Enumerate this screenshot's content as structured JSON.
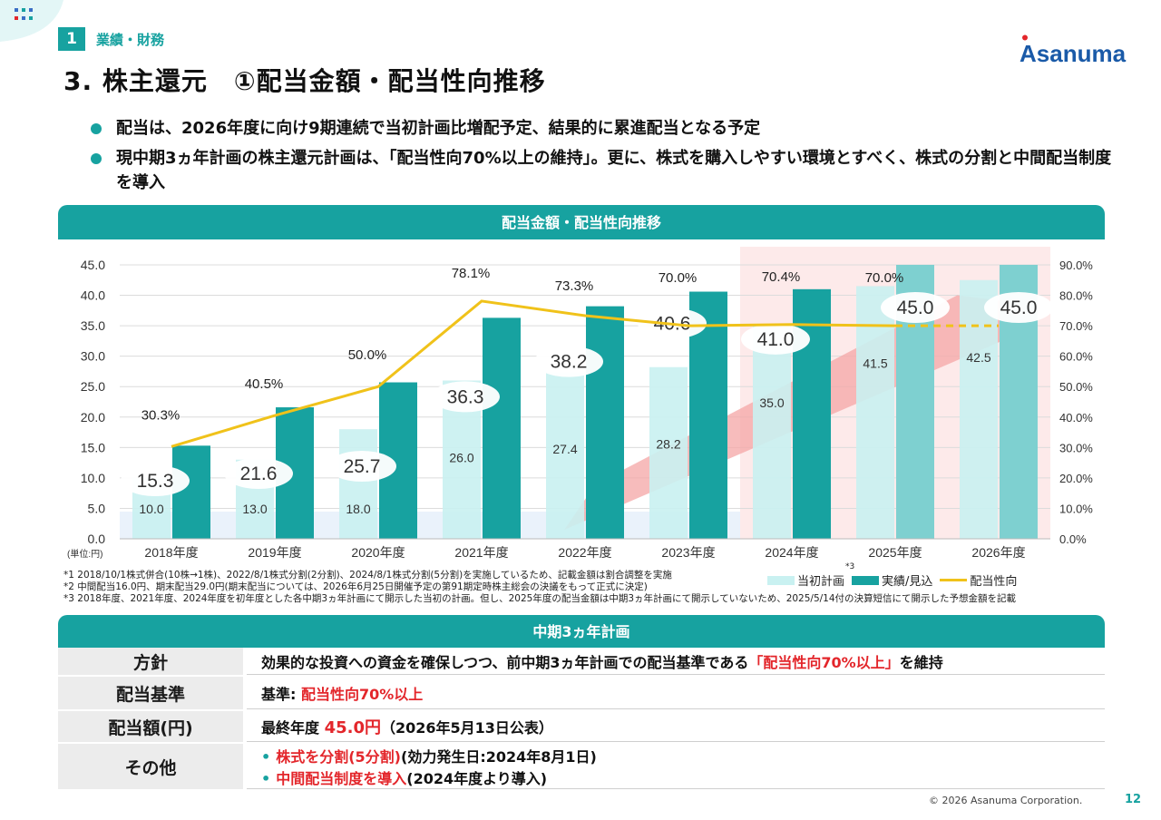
{
  "section": {
    "number": "1",
    "label": "業績・財務"
  },
  "title": "3. 株主還元　①配当金額・配当性向推移",
  "logo_text": "Asanuma",
  "bullets": [
    "配当は、2026年度に向け9期連続で当初計画比増配予定、結果的に累進配当となる予定",
    "現中期3ヵ年計画の株主還元計画は、「配当性向70%以上の維持」。更に、株式を購入しやすい環境とすべく、株式の分割と中間配当制度を導入"
  ],
  "chart_header": "配当金額・配当性向推移",
  "chart_data": {
    "type": "bar",
    "unit_label": "(単位:円)",
    "categories": [
      "2018年度",
      "2019年度",
      "2020年度",
      "2021年度",
      "2022年度",
      "2023年度",
      "2024年度",
      "2025年度",
      "2026年度"
    ],
    "series": [
      {
        "name": "当初計画",
        "type": "bar",
        "values": [
          10.0,
          13.0,
          18.0,
          26.0,
          27.4,
          28.2,
          35.0,
          41.5,
          42.5
        ],
        "labels": [
          "10.0",
          "13.0",
          "18.0",
          "26.0",
          "27.4",
          "28.2",
          "35.0",
          "41.5",
          "42.5"
        ]
      },
      {
        "name": "実績/見込",
        "type": "bar",
        "values": [
          15.3,
          21.6,
          25.7,
          36.3,
          38.2,
          40.6,
          41.0,
          45.0,
          45.0
        ],
        "labels": [
          "15.3",
          "21.6",
          "25.7",
          "36.3",
          "38.2",
          "40.6",
          "41.0",
          "45.0",
          "45.0"
        ]
      },
      {
        "name": "配当性向",
        "type": "line",
        "axis": "right",
        "values": [
          30.3,
          40.5,
          50.0,
          78.1,
          73.3,
          70.0,
          70.4,
          70.0,
          70.0
        ],
        "labels": [
          "30.3%",
          "40.5%",
          "50.0%",
          "78.1%",
          "73.3%",
          "70.0%",
          "70.4%",
          "70.0%",
          ""
        ],
        "dashed_from_index": 7
      }
    ],
    "y_left": {
      "min": 0,
      "max": 45,
      "ticks": [
        "0.0",
        "5.0",
        "10.0",
        "15.0",
        "20.0",
        "25.0",
        "30.0",
        "35.0",
        "40.0",
        "45.0"
      ]
    },
    "y_right": {
      "min": 0,
      "max": 90,
      "ticks": [
        "0.0%",
        "10.0%",
        "20.0%",
        "30.0%",
        "40.0%",
        "50.0%",
        "60.0%",
        "70.0%",
        "80.0%",
        "90.0%"
      ]
    },
    "grid": true,
    "legend_position": "bottom-right",
    "legend_superscript": "*3",
    "colors": {
      "plan": "#c9f1f1",
      "plan_highlight": "#c9f1f1",
      "actual": "#17a2a0",
      "actual_forecast": "#7ed0d0",
      "payout": "#f0c21a",
      "grid": "#dcdcdc",
      "arrow": "#f4a6a6",
      "highlight_bg": "#fdeaea"
    }
  },
  "footnotes": [
    "*1 2018/10/1株式併合(10株→1株)、2022/8/1株式分割(2分割)、2024/8/1株式分割(5分割)を実施しているため、記載金額は割合調整を実施",
    "*2 中間配当16.0円、期末配当29.0円(期末配当については、2026年6月25日開催予定の第91期定時株主総会の決議をもって正式に決定)",
    "*3 2018年度、2021年度、2024年度を初年度とした各中期3ヵ年計画にて開示した当初の計画。但し、2025年度の配当金額は中期3ヵ年計画にて開示していないため、2025/5/14付の決算短信にて開示した予想金額を記載"
  ],
  "plan": {
    "header": "中期3ヵ年計画",
    "policy_key": "方針",
    "policy_text_1": "効果的な投資への資金を確保しつつ、前中期3ヵ年計画での配当基準である",
    "policy_text_red": "「配当性向70%以上」",
    "policy_text_2": "を維持",
    "standard_key": "配当基準",
    "standard_text": "基準: ",
    "standard_red": "配当性向70%以上",
    "amount_key": "配当額(円)",
    "amount_text": "最終年度 ",
    "amount_red": "45.0円",
    "amount_note": "（2026年5月13日公表）",
    "other_key": "その他",
    "other_items": [
      {
        "red": "株式を分割(5分割)",
        "text": "(効力発生日:2024年8月1日)"
      },
      {
        "red": "中間配当制度を導入",
        "text": "(2024年度より導入)"
      }
    ]
  },
  "copyright": "© 2026 Asanuma Corporation.",
  "page_number": "12"
}
